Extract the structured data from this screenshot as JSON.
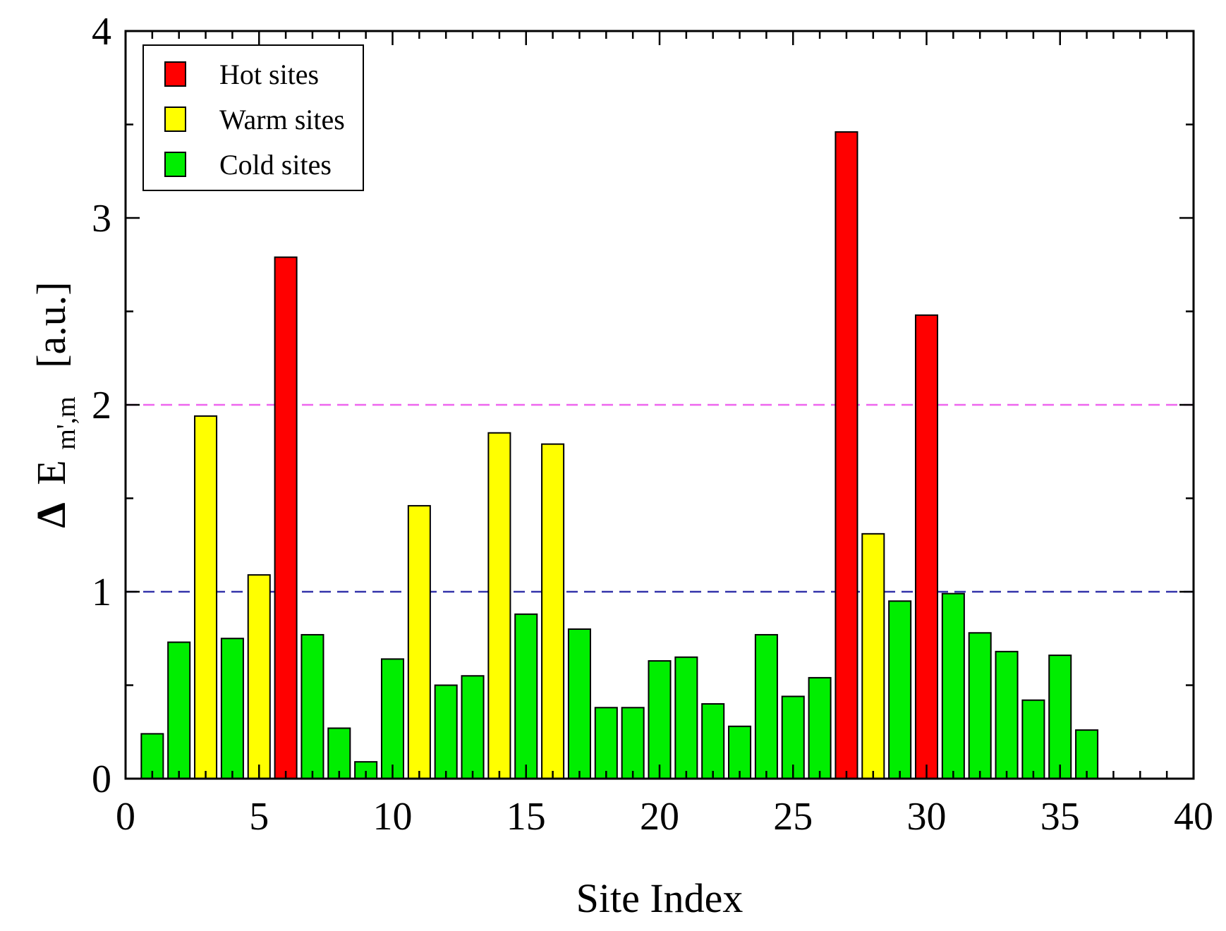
{
  "chart_data": {
    "type": "bar",
    "xlabel": "Site Index",
    "ylabel": {
      "delta": "Δ",
      "symbol": "E",
      "subscript": "m',m",
      "unit": "[a.u.]"
    },
    "xlim": [
      0,
      40
    ],
    "ylim": [
      0,
      4
    ],
    "xticks": [
      0,
      5,
      10,
      15,
      20,
      25,
      30,
      35,
      40
    ],
    "yticks": [
      0,
      1,
      2,
      3,
      4
    ],
    "legend": {
      "position": "top-left",
      "entries": [
        {
          "label": "Hot sites",
          "category": "hot"
        },
        {
          "label": "Warm sites",
          "category": "warm"
        },
        {
          "label": "Cold sites",
          "category": "cold"
        }
      ]
    },
    "colors": {
      "hot": "#ff0000",
      "warm": "#ffff00",
      "cold": "#00ee00"
    },
    "reference_lines": [
      {
        "y": 2,
        "color": "#ee66ee",
        "style": "dashed"
      },
      {
        "y": 1,
        "color": "#3333aa",
        "style": "dashed"
      }
    ],
    "bars": [
      {
        "x": 1,
        "value": 0.24,
        "category": "cold"
      },
      {
        "x": 2,
        "value": 0.73,
        "category": "cold"
      },
      {
        "x": 3,
        "value": 1.94,
        "category": "warm"
      },
      {
        "x": 4,
        "value": 0.75,
        "category": "cold"
      },
      {
        "x": 5,
        "value": 1.09,
        "category": "warm"
      },
      {
        "x": 6,
        "value": 2.79,
        "category": "hot"
      },
      {
        "x": 7,
        "value": 0.77,
        "category": "cold"
      },
      {
        "x": 8,
        "value": 0.27,
        "category": "cold"
      },
      {
        "x": 9,
        "value": 0.09,
        "category": "cold"
      },
      {
        "x": 10,
        "value": 0.64,
        "category": "cold"
      },
      {
        "x": 11,
        "value": 1.46,
        "category": "warm"
      },
      {
        "x": 12,
        "value": 0.5,
        "category": "cold"
      },
      {
        "x": 13,
        "value": 0.55,
        "category": "cold"
      },
      {
        "x": 14,
        "value": 1.85,
        "category": "warm"
      },
      {
        "x": 15,
        "value": 0.88,
        "category": "cold"
      },
      {
        "x": 16,
        "value": 1.79,
        "category": "warm"
      },
      {
        "x": 17,
        "value": 0.8,
        "category": "cold"
      },
      {
        "x": 18,
        "value": 0.38,
        "category": "cold"
      },
      {
        "x": 19,
        "value": 0.38,
        "category": "cold"
      },
      {
        "x": 20,
        "value": 0.63,
        "category": "cold"
      },
      {
        "x": 21,
        "value": 0.65,
        "category": "cold"
      },
      {
        "x": 22,
        "value": 0.4,
        "category": "cold"
      },
      {
        "x": 23,
        "value": 0.28,
        "category": "cold"
      },
      {
        "x": 24,
        "value": 0.77,
        "category": "cold"
      },
      {
        "x": 25,
        "value": 0.44,
        "category": "cold"
      },
      {
        "x": 26,
        "value": 0.54,
        "category": "cold"
      },
      {
        "x": 27,
        "value": 3.46,
        "category": "hot"
      },
      {
        "x": 28,
        "value": 1.31,
        "category": "warm"
      },
      {
        "x": 29,
        "value": 0.95,
        "category": "cold"
      },
      {
        "x": 30,
        "value": 2.48,
        "category": "hot"
      },
      {
        "x": 31,
        "value": 0.99,
        "category": "cold"
      },
      {
        "x": 32,
        "value": 0.78,
        "category": "cold"
      },
      {
        "x": 33,
        "value": 0.68,
        "category": "cold"
      },
      {
        "x": 34,
        "value": 0.42,
        "category": "cold"
      },
      {
        "x": 35,
        "value": 0.66,
        "category": "cold"
      },
      {
        "x": 36,
        "value": 0.26,
        "category": "cold"
      }
    ]
  }
}
